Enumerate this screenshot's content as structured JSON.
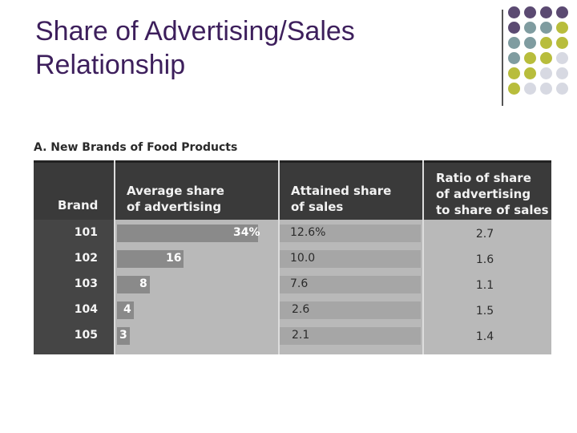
{
  "slide": {
    "title_line1": "Share of Advertising/Sales",
    "title_line2": "Relationship"
  },
  "table": {
    "caption": "A. New Brands of Food Products",
    "headers": {
      "brand": "Brand",
      "adv_line1": "Average share",
      "adv_line2": "of advertising",
      "sales_line1": "Attained share",
      "sales_line2": "of sales",
      "ratio_line1": "Ratio of share",
      "ratio_line2": "of advertising",
      "ratio_line3": "to share of sales"
    },
    "rows": [
      {
        "brand": "101",
        "adv_label": "34%",
        "adv_value": 34,
        "sales": "12.6%",
        "ratio": "2.7"
      },
      {
        "brand": "102",
        "adv_label": "16",
        "adv_value": 16,
        "sales": "10.0",
        "ratio": "1.6"
      },
      {
        "brand": "103",
        "adv_label": "8",
        "adv_value": 8,
        "sales": "7.6",
        "ratio": "1.1"
      },
      {
        "brand": "104",
        "adv_label": "4",
        "adv_value": 4,
        "sales": "2.6",
        "ratio": "1.5"
      },
      {
        "brand": "105",
        "adv_label": "3",
        "adv_value": 3,
        "sales": "2.1",
        "ratio": "1.4"
      }
    ]
  },
  "colors": {
    "title": "#3d1f5c",
    "dot_purple": "#5b4a72",
    "dot_slate": "#7f9ca0",
    "dot_olive": "#b8bd3c",
    "dot_silver": "#d7d9e2"
  }
}
